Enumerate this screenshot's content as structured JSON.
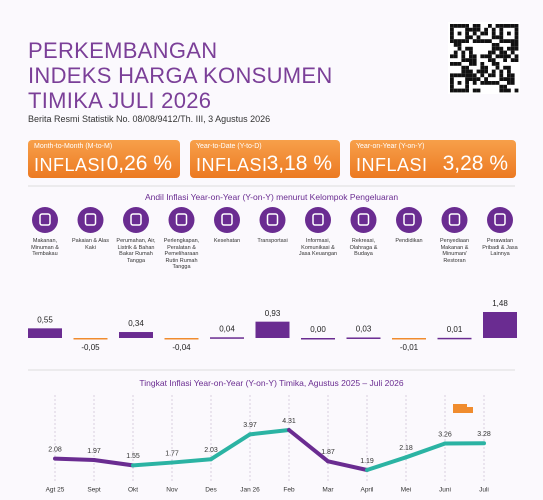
{
  "header": {
    "title_lines": [
      "PERKEMBANGAN",
      "INDEKS HARGA KONSUMEN",
      "TIMIKA JULI 2026"
    ],
    "subtitle": "Berita Resmi Statistik No. 08/08/9412/Th. III, 3 Agustus 2026"
  },
  "cards": [
    {
      "label": "Month-to-Month (M-to-M)",
      "name": "INFLASI",
      "value": "0,26 %"
    },
    {
      "label": "Year-to-Date (Y-to-D)",
      "name": "INFLASI",
      "value": "3,18 %"
    },
    {
      "label": "Year-on-Year (Y-on-Y)",
      "name": "INFLASI",
      "value": "3,28 %"
    }
  ],
  "chart_data": [
    {
      "type": "bar",
      "title": "Andil Inflasi Year-on-Year (Y-on-Y) menurut Kelompok Pengeluaran",
      "categories": [
        "Makanan, Minuman & Tembakau",
        "Pakaian & Alas Kaki",
        "Perumahan, Air, Listrik & Bahan Bakar Rumah Tangga",
        "Perlengkapan, Peralatan & Pemeliharaan Rutin Rumah Tangga",
        "Kesehatan",
        "Transportasi",
        "Informasi, Komunikasi & Jasa Keuangan",
        "Rekreasi, Olahraga & Budaya",
        "Pendidikan",
        "Penyediaan Makanan & Minuman/ Restoran",
        "Perawatan Pribadi & Jasa Lainnya"
      ],
      "values": [
        0.55,
        -0.05,
        0.34,
        -0.04,
        0.04,
        0.93,
        0.0,
        0.03,
        -0.01,
        0.01,
        1.48
      ],
      "value_labels": [
        "0,55",
        "-0,05",
        "0,34",
        "-0,04",
        "0,04",
        "0,93",
        "0,00",
        "0,03",
        "-0,01",
        "0,01",
        "1,48"
      ],
      "color": "#6a2c91",
      "negative_color": "#f08c2e"
    },
    {
      "type": "line",
      "title": "Tingkat Inflasi Year-on-Year (Y-on-Y) Timika, Agustus 2025 – Juli 2026",
      "categories": [
        "Agt 25",
        "Sept",
        "Okt",
        "Nov",
        "Des",
        "Jan 26",
        "Feb",
        "Mar",
        "April",
        "Mei",
        "Juni",
        "Juli"
      ],
      "values": [
        2.08,
        1.97,
        1.55,
        1.77,
        2.03,
        3.97,
        4.31,
        1.87,
        1.19,
        2.18,
        3.26,
        3.28
      ],
      "color": "#2bb3a3",
      "down_color": "#6a2c91"
    }
  ]
}
